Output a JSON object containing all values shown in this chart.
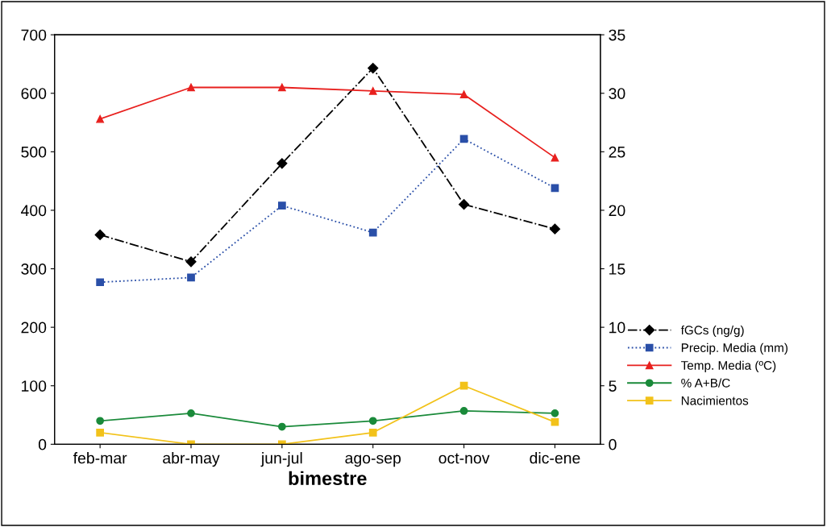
{
  "chart_data": {
    "type": "line",
    "xlabel": "bimestre",
    "categories": [
      "feb-mar",
      "abr-may",
      "jun-jul",
      "ago-sep",
      "oct-nov",
      "dic-ene"
    ],
    "series": [
      {
        "name": "fGCs (ng/g)",
        "color": "#000000",
        "marker": "diamond",
        "line_style": "dashdot",
        "values": [
          358,
          312,
          480,
          643,
          410,
          368
        ]
      },
      {
        "name": "Precip. Media (mm)",
        "color": "#2a4fa8",
        "marker": "square",
        "line_style": "dotted",
        "values": [
          277,
          285,
          408,
          362,
          522,
          438
        ]
      },
      {
        "name": "Temp. Media (ºC)",
        "color": "#e8201e",
        "marker": "triangle",
        "line_style": "solid",
        "axis": "y2",
        "values": [
          27.8,
          30.5,
          30.5,
          30.2,
          29.9,
          24.5
        ]
      },
      {
        "name": "% A+B/C",
        "color": "#1a8a3a",
        "marker": "circle",
        "line_style": "solid",
        "values": [
          40,
          53,
          30,
          40,
          57,
          53
        ]
      },
      {
        "name": "Nacimientos",
        "color": "#f2c21a",
        "marker": "square",
        "line_style": "solid",
        "axis": "y2",
        "values": [
          1,
          0,
          0,
          1,
          5,
          1.9
        ]
      }
    ],
    "ylim": [
      0,
      700
    ],
    "yticks": [
      0,
      100,
      200,
      300,
      400,
      500,
      600,
      700
    ],
    "y2lim": [
      0,
      35
    ],
    "y2ticks": [
      0,
      5,
      10,
      15,
      20,
      25,
      30,
      35
    ],
    "grid": false,
    "legend": "right"
  }
}
